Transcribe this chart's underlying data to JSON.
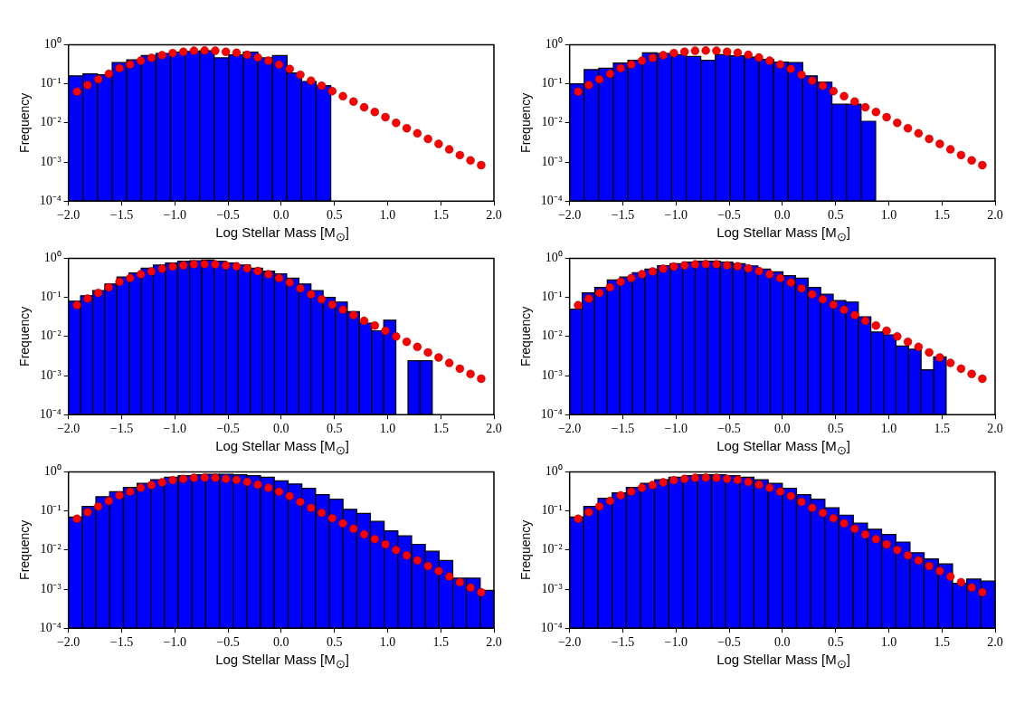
{
  "chart_data": [
    {
      "type": "histogram",
      "xlabel": "Log Stellar Mass [M$_{⊙}$]",
      "ylabel": "Frequency",
      "log": true,
      "xlim": [
        -2,
        2
      ],
      "ylim": [
        0.0001,
        1
      ],
      "xticks": [
        {
          "value": -2,
          "label": "−2.0"
        },
        {
          "value": -1.5,
          "label": "−1.5"
        },
        {
          "value": -1,
          "label": "−1.0"
        },
        {
          "value": -0.5,
          "label": "−0.5"
        },
        {
          "value": 0,
          "label": "0.0"
        },
        {
          "value": 0.5,
          "label": "0.5"
        },
        {
          "value": 1,
          "label": "1.0"
        },
        {
          "value": 1.5,
          "label": "1.5"
        },
        {
          "value": 2,
          "label": "2.0"
        }
      ],
      "yticks": [
        {
          "value": 0.0001,
          "label": "10⁻⁴"
        },
        {
          "value": 0.001,
          "label": "10⁻³"
        },
        {
          "value": 0.01,
          "label": "10⁻²"
        },
        {
          "value": 0.1,
          "label": "10⁻¹"
        },
        {
          "value": 1,
          "label": "10⁰"
        }
      ],
      "series": [
        {
          "type": "histogram",
          "color": "#0000ff",
          "bins": [
            -2,
            -1.863,
            -1.726,
            -1.589,
            -1.452,
            -1.315,
            -1.178,
            -1.041,
            -0.904,
            -0.767,
            -0.63,
            -0.493,
            -0.356,
            -0.219,
            -0.082,
            0.055,
            0.192,
            0.329,
            0.466
          ],
          "values": [
            0.16,
            0.18,
            0.17,
            0.35,
            0.41,
            0.53,
            0.6,
            0.65,
            0.67,
            0.7,
            0.46,
            0.55,
            0.65,
            0.46,
            0.53,
            0.19,
            0.115,
            0.09
          ]
        },
        {
          "type": "scatter",
          "color": "#ff0000",
          "marker": "circle",
          "x": [
            -1.92,
            -1.82,
            -1.72,
            -1.62,
            -1.52,
            -1.42,
            -1.32,
            -1.22,
            -1.12,
            -1.02,
            -0.92,
            -0.82,
            -0.72,
            -0.62,
            -0.52,
            -0.42,
            -0.32,
            -0.22,
            -0.12,
            -0.02,
            0.08,
            0.18,
            0.28,
            0.38,
            0.48,
            0.58,
            0.68,
            0.78,
            0.88,
            0.98,
            1.08,
            1.18,
            1.28,
            1.38,
            1.48,
            1.58,
            1.68,
            1.78,
            1.88
          ],
          "values": [
            0.063,
            0.093,
            0.13,
            0.18,
            0.25,
            0.31,
            0.39,
            0.46,
            0.54,
            0.61,
            0.66,
            0.7,
            0.71,
            0.7,
            0.66,
            0.62,
            0.55,
            0.47,
            0.39,
            0.31,
            0.24,
            0.17,
            0.12,
            0.089,
            0.065,
            0.048,
            0.035,
            0.025,
            0.019,
            0.014,
            0.01,
            0.0073,
            0.0054,
            0.0039,
            0.0029,
            0.0021,
            0.0015,
            0.0011,
            0.00083
          ]
        }
      ]
    },
    {
      "type": "histogram",
      "xlabel": "Log Stellar Mass [M$_{⊙}$]",
      "ylabel": "Frequency",
      "log": true,
      "xlim": [
        -2,
        2
      ],
      "ylim": [
        0.0001,
        1
      ],
      "xticks": [
        {
          "value": -2,
          "label": "−2.0"
        },
        {
          "value": -1.5,
          "label": "−1.5"
        },
        {
          "value": -1,
          "label": "−1.0"
        },
        {
          "value": -0.5,
          "label": "−0.5"
        },
        {
          "value": 0,
          "label": "0.0"
        },
        {
          "value": 0.5,
          "label": "0.5"
        },
        {
          "value": 1,
          "label": "1.0"
        },
        {
          "value": 1.5,
          "label": "1.5"
        },
        {
          "value": 2,
          "label": "2.0"
        }
      ],
      "yticks": [
        {
          "value": 0.0001,
          "label": "10⁻⁴"
        },
        {
          "value": 0.001,
          "label": "10⁻³"
        },
        {
          "value": 0.01,
          "label": "10⁻²"
        },
        {
          "value": 0.1,
          "label": "10⁻¹"
        },
        {
          "value": 1,
          "label": "10⁰"
        }
      ],
      "series": [
        {
          "type": "histogram",
          "color": "#0000ff",
          "bins": [
            -2,
            -1.863,
            -1.726,
            -1.589,
            -1.452,
            -1.315,
            -1.178,
            -1.041,
            -0.904,
            -0.767,
            -0.63,
            -0.493,
            -0.356,
            -0.219,
            -0.082,
            0.055,
            0.192,
            0.329,
            0.466,
            0.603,
            0.74,
            0.877
          ],
          "values": [
            0.1,
            0.23,
            0.25,
            0.34,
            0.4,
            0.62,
            0.6,
            0.56,
            0.5,
            0.4,
            0.56,
            0.52,
            0.48,
            0.42,
            0.36,
            0.35,
            0.16,
            0.11,
            0.03,
            0.03,
            0.011
          ]
        },
        {
          "type": "scatter",
          "color": "#ff0000",
          "marker": "circle",
          "x": [
            -1.92,
            -1.82,
            -1.72,
            -1.62,
            -1.52,
            -1.42,
            -1.32,
            -1.22,
            -1.12,
            -1.02,
            -0.92,
            -0.82,
            -0.72,
            -0.62,
            -0.52,
            -0.42,
            -0.32,
            -0.22,
            -0.12,
            -0.02,
            0.08,
            0.18,
            0.28,
            0.38,
            0.48,
            0.58,
            0.68,
            0.78,
            0.88,
            0.98,
            1.08,
            1.18,
            1.28,
            1.38,
            1.48,
            1.58,
            1.68,
            1.78,
            1.88
          ],
          "values": [
            0.063,
            0.093,
            0.13,
            0.18,
            0.25,
            0.31,
            0.39,
            0.46,
            0.54,
            0.61,
            0.66,
            0.7,
            0.71,
            0.7,
            0.66,
            0.62,
            0.55,
            0.47,
            0.39,
            0.31,
            0.24,
            0.17,
            0.12,
            0.089,
            0.065,
            0.048,
            0.035,
            0.025,
            0.019,
            0.014,
            0.01,
            0.0073,
            0.0054,
            0.0039,
            0.0029,
            0.0021,
            0.0015,
            0.0011,
            0.00083
          ]
        }
      ]
    },
    {
      "type": "histogram",
      "xlabel": "Log Stellar Mass [M$_{⊙}$]",
      "ylabel": "Frequency",
      "log": true,
      "xlim": [
        -2,
        2
      ],
      "ylim": [
        0.0001,
        1
      ],
      "xticks": [
        {
          "value": -2,
          "label": "−2.0"
        },
        {
          "value": -1.5,
          "label": "−1.5"
        },
        {
          "value": -1,
          "label": "−1.0"
        },
        {
          "value": -0.5,
          "label": "−0.5"
        },
        {
          "value": 0,
          "label": "0.0"
        },
        {
          "value": 0.5,
          "label": "0.5"
        },
        {
          "value": 1,
          "label": "1.0"
        },
        {
          "value": 1.5,
          "label": "1.5"
        },
        {
          "value": 2,
          "label": "2.0"
        }
      ],
      "yticks": [
        {
          "value": 0.0001,
          "label": "10⁻⁴"
        },
        {
          "value": 0.001,
          "label": "10⁻³"
        },
        {
          "value": 0.01,
          "label": "10⁻²"
        },
        {
          "value": 0.1,
          "label": "10⁻¹"
        },
        {
          "value": 1,
          "label": "10⁰"
        }
      ],
      "series": [
        {
          "type": "histogram",
          "color": "#0000ff",
          "bins": [
            -2,
            -1.886,
            -1.772,
            -1.658,
            -1.544,
            -1.43,
            -1.316,
            -1.202,
            -1.088,
            -0.974,
            -0.86,
            -0.746,
            -0.632,
            -0.518,
            -0.404,
            -0.29,
            -0.176,
            -0.062,
            0.052,
            0.166,
            0.28,
            0.394,
            0.508,
            0.622,
            0.736,
            0.85,
            0.964,
            1.078,
            1.192,
            1.306,
            1.42
          ],
          "values": [
            0.08,
            0.11,
            0.15,
            0.22,
            0.33,
            0.42,
            0.56,
            0.67,
            0.76,
            0.84,
            0.87,
            0.9,
            0.84,
            0.76,
            0.67,
            0.56,
            0.47,
            0.4,
            0.31,
            0.22,
            0.15,
            0.1,
            0.076,
            0.043,
            0.022,
            0.014,
            0.026,
            null,
            0.0024,
            0.0024
          ]
        },
        {
          "type": "scatter",
          "color": "#ff0000",
          "marker": "circle",
          "x": [
            -1.92,
            -1.82,
            -1.72,
            -1.62,
            -1.52,
            -1.42,
            -1.32,
            -1.22,
            -1.12,
            -1.02,
            -0.92,
            -0.82,
            -0.72,
            -0.62,
            -0.52,
            -0.42,
            -0.32,
            -0.22,
            -0.12,
            -0.02,
            0.08,
            0.18,
            0.28,
            0.38,
            0.48,
            0.58,
            0.68,
            0.78,
            0.88,
            0.98,
            1.08,
            1.18,
            1.28,
            1.38,
            1.48,
            1.58,
            1.68,
            1.78,
            1.88
          ],
          "values": [
            0.063,
            0.093,
            0.13,
            0.18,
            0.25,
            0.31,
            0.39,
            0.46,
            0.54,
            0.61,
            0.66,
            0.7,
            0.71,
            0.7,
            0.66,
            0.62,
            0.55,
            0.47,
            0.39,
            0.31,
            0.24,
            0.17,
            0.12,
            0.089,
            0.065,
            0.048,
            0.035,
            0.025,
            0.019,
            0.014,
            0.01,
            0.0073,
            0.0054,
            0.0039,
            0.0029,
            0.0021,
            0.0015,
            0.0011,
            0.00083
          ]
        }
      ]
    },
    {
      "type": "histogram",
      "xlabel": "Log Stellar Mass [M$_{⊙}$]",
      "ylabel": "Frequency",
      "log": true,
      "xlim": [
        -2,
        2
      ],
      "ylim": [
        0.0001,
        1
      ],
      "xticks": [
        {
          "value": -2,
          "label": "−2.0"
        },
        {
          "value": -1.5,
          "label": "−1.5"
        },
        {
          "value": -1,
          "label": "−1.0"
        },
        {
          "value": -0.5,
          "label": "−0.5"
        },
        {
          "value": 0,
          "label": "0.0"
        },
        {
          "value": 0.5,
          "label": "0.5"
        },
        {
          "value": 1,
          "label": "1.0"
        },
        {
          "value": 1.5,
          "label": "1.5"
        },
        {
          "value": 2,
          "label": "2.0"
        }
      ],
      "yticks": [
        {
          "value": 0.0001,
          "label": "10⁻⁴"
        },
        {
          "value": 0.001,
          "label": "10⁻³"
        },
        {
          "value": 0.01,
          "label": "10⁻²"
        },
        {
          "value": 0.1,
          "label": "10⁻¹"
        },
        {
          "value": 1,
          "label": "10⁰"
        }
      ],
      "series": [
        {
          "type": "histogram",
          "color": "#0000ff",
          "bins": [
            -2,
            -1.882,
            -1.764,
            -1.646,
            -1.528,
            -1.41,
            -1.292,
            -1.174,
            -1.056,
            -0.938,
            -0.82,
            -0.702,
            -0.584,
            -0.466,
            -0.348,
            -0.23,
            -0.112,
            0.006,
            0.124,
            0.242,
            0.36,
            0.478,
            0.596,
            0.714,
            0.832,
            0.95,
            1.068,
            1.186,
            1.304,
            1.422,
            1.54
          ],
          "values": [
            0.05,
            0.13,
            0.18,
            0.28,
            0.33,
            0.43,
            0.53,
            0.65,
            0.73,
            0.8,
            0.84,
            0.84,
            0.8,
            0.73,
            0.64,
            0.53,
            0.45,
            0.36,
            0.31,
            0.18,
            0.12,
            0.083,
            0.076,
            0.032,
            0.013,
            0.011,
            0.0057,
            0.0047,
            0.0014,
            0.003
          ]
        },
        {
          "type": "scatter",
          "color": "#ff0000",
          "marker": "circle",
          "x": [
            -1.92,
            -1.82,
            -1.72,
            -1.62,
            -1.52,
            -1.42,
            -1.32,
            -1.22,
            -1.12,
            -1.02,
            -0.92,
            -0.82,
            -0.72,
            -0.62,
            -0.52,
            -0.42,
            -0.32,
            -0.22,
            -0.12,
            -0.02,
            0.08,
            0.18,
            0.28,
            0.38,
            0.48,
            0.58,
            0.68,
            0.78,
            0.88,
            0.98,
            1.08,
            1.18,
            1.28,
            1.38,
            1.48,
            1.58,
            1.68,
            1.78,
            1.88
          ],
          "values": [
            0.063,
            0.093,
            0.13,
            0.18,
            0.25,
            0.31,
            0.39,
            0.46,
            0.54,
            0.61,
            0.66,
            0.7,
            0.71,
            0.7,
            0.66,
            0.62,
            0.55,
            0.47,
            0.39,
            0.31,
            0.24,
            0.17,
            0.12,
            0.089,
            0.065,
            0.048,
            0.035,
            0.025,
            0.019,
            0.014,
            0.01,
            0.0073,
            0.0054,
            0.0039,
            0.0029,
            0.0021,
            0.0015,
            0.0011,
            0.00083
          ]
        }
      ]
    },
    {
      "type": "histogram",
      "xlabel": "Log Stellar Mass [M$_{⊙}$]",
      "ylabel": "Frequency",
      "log": true,
      "xlim": [
        -2,
        2
      ],
      "ylim": [
        0.0001,
        1
      ],
      "xticks": [
        {
          "value": -2,
          "label": "−2.0"
        },
        {
          "value": -1.5,
          "label": "−1.5"
        },
        {
          "value": -1,
          "label": "−1.0"
        },
        {
          "value": -0.5,
          "label": "−0.5"
        },
        {
          "value": 0,
          "label": "0.0"
        },
        {
          "value": 0.5,
          "label": "0.5"
        },
        {
          "value": 1,
          "label": "1.0"
        },
        {
          "value": 1.5,
          "label": "1.5"
        },
        {
          "value": 2,
          "label": "2.0"
        }
      ],
      "yticks": [
        {
          "value": 0.0001,
          "label": "10⁻⁴"
        },
        {
          "value": 0.001,
          "label": "10⁻³"
        },
        {
          "value": 0.01,
          "label": "10⁻²"
        },
        {
          "value": 0.1,
          "label": "10⁻¹"
        },
        {
          "value": 1,
          "label": "10⁰"
        }
      ],
      "series": [
        {
          "type": "histogram",
          "color": "#0000ff",
          "bins": [
            -2,
            -1.871,
            -1.742,
            -1.613,
            -1.484,
            -1.355,
            -1.226,
            -1.097,
            -0.968,
            -0.839,
            -0.71,
            -0.581,
            -0.452,
            -0.323,
            -0.194,
            -0.065,
            0.065,
            0.194,
            0.323,
            0.452,
            0.581,
            0.71,
            0.839,
            0.968,
            1.097,
            1.226,
            1.355,
            1.484,
            1.613,
            1.742,
            1.871,
            2
          ],
          "values": [
            0.07,
            0.13,
            0.23,
            0.31,
            0.4,
            0.51,
            0.63,
            0.73,
            0.8,
            0.84,
            0.87,
            0.87,
            0.84,
            0.8,
            0.73,
            0.59,
            0.49,
            0.38,
            0.26,
            0.2,
            0.11,
            0.086,
            0.054,
            0.031,
            0.023,
            0.014,
            0.0093,
            0.0054,
            0.0019,
            0.0019,
            0.00093
          ]
        },
        {
          "type": "scatter",
          "color": "#ff0000",
          "marker": "circle",
          "x": [
            -1.92,
            -1.82,
            -1.72,
            -1.62,
            -1.52,
            -1.42,
            -1.32,
            -1.22,
            -1.12,
            -1.02,
            -0.92,
            -0.82,
            -0.72,
            -0.62,
            -0.52,
            -0.42,
            -0.32,
            -0.22,
            -0.12,
            -0.02,
            0.08,
            0.18,
            0.28,
            0.38,
            0.48,
            0.58,
            0.68,
            0.78,
            0.88,
            0.98,
            1.08,
            1.18,
            1.28,
            1.38,
            1.48,
            1.58,
            1.68,
            1.78,
            1.88
          ],
          "values": [
            0.063,
            0.093,
            0.13,
            0.18,
            0.25,
            0.31,
            0.39,
            0.46,
            0.54,
            0.61,
            0.66,
            0.7,
            0.71,
            0.7,
            0.66,
            0.62,
            0.55,
            0.47,
            0.39,
            0.31,
            0.24,
            0.17,
            0.12,
            0.089,
            0.065,
            0.048,
            0.035,
            0.025,
            0.019,
            0.014,
            0.01,
            0.0073,
            0.0054,
            0.0039,
            0.0029,
            0.0021,
            0.0015,
            0.0011,
            0.00083
          ]
        }
      ]
    },
    {
      "type": "histogram",
      "xlabel": "Log Stellar Mass [M$_{⊙}$]",
      "ylabel": "Frequency",
      "log": true,
      "xlim": [
        -2,
        2
      ],
      "ylim": [
        0.0001,
        1
      ],
      "xticks": [
        {
          "value": -2,
          "label": "−2.0"
        },
        {
          "value": -1.5,
          "label": "−1.5"
        },
        {
          "value": -1,
          "label": "−1.0"
        },
        {
          "value": -0.5,
          "label": "−0.5"
        },
        {
          "value": 0,
          "label": "0.0"
        },
        {
          "value": 0.5,
          "label": "0.5"
        },
        {
          "value": 1,
          "label": "1.0"
        },
        {
          "value": 1.5,
          "label": "1.5"
        },
        {
          "value": 2,
          "label": "2.0"
        }
      ],
      "yticks": [
        {
          "value": 0.0001,
          "label": "10⁻⁴"
        },
        {
          "value": 0.001,
          "label": "10⁻³"
        },
        {
          "value": 0.01,
          "label": "10⁻²"
        },
        {
          "value": 0.1,
          "label": "10⁻¹"
        },
        {
          "value": 1,
          "label": "10⁰"
        }
      ],
      "series": [
        {
          "type": "histogram",
          "color": "#0000ff",
          "bins": [
            -2,
            -1.867,
            -1.733,
            -1.6,
            -1.467,
            -1.333,
            -1.2,
            -1.067,
            -0.933,
            -0.8,
            -0.667,
            -0.533,
            -0.4,
            -0.267,
            -0.133,
            0,
            0.133,
            0.267,
            0.4,
            0.533,
            0.667,
            0.8,
            0.933,
            1.067,
            1.2,
            1.333,
            1.467,
            1.6,
            1.733,
            1.867,
            2
          ],
          "values": [
            0.07,
            0.13,
            0.21,
            0.29,
            0.4,
            0.51,
            0.63,
            0.73,
            0.8,
            0.84,
            0.84,
            0.8,
            0.73,
            0.63,
            0.51,
            0.38,
            0.26,
            0.2,
            0.12,
            0.078,
            0.049,
            0.034,
            0.025,
            0.016,
            0.0085,
            0.0059,
            0.0044,
            0.0014,
            0.0018,
            0.0016
          ]
        },
        {
          "type": "scatter",
          "color": "#ff0000",
          "marker": "circle",
          "x": [
            -1.92,
            -1.82,
            -1.72,
            -1.62,
            -1.52,
            -1.42,
            -1.32,
            -1.22,
            -1.12,
            -1.02,
            -0.92,
            -0.82,
            -0.72,
            -0.62,
            -0.52,
            -0.42,
            -0.32,
            -0.22,
            -0.12,
            -0.02,
            0.08,
            0.18,
            0.28,
            0.38,
            0.48,
            0.58,
            0.68,
            0.78,
            0.88,
            0.98,
            1.08,
            1.18,
            1.28,
            1.38,
            1.48,
            1.58,
            1.68,
            1.78,
            1.88
          ],
          "values": [
            0.063,
            0.093,
            0.13,
            0.18,
            0.25,
            0.31,
            0.39,
            0.46,
            0.54,
            0.61,
            0.66,
            0.7,
            0.71,
            0.7,
            0.66,
            0.62,
            0.55,
            0.47,
            0.39,
            0.31,
            0.24,
            0.17,
            0.12,
            0.089,
            0.065,
            0.048,
            0.035,
            0.025,
            0.019,
            0.014,
            0.01,
            0.0073,
            0.0054,
            0.0039,
            0.0029,
            0.0021,
            0.0015,
            0.0011,
            0.00083
          ]
        }
      ]
    }
  ]
}
